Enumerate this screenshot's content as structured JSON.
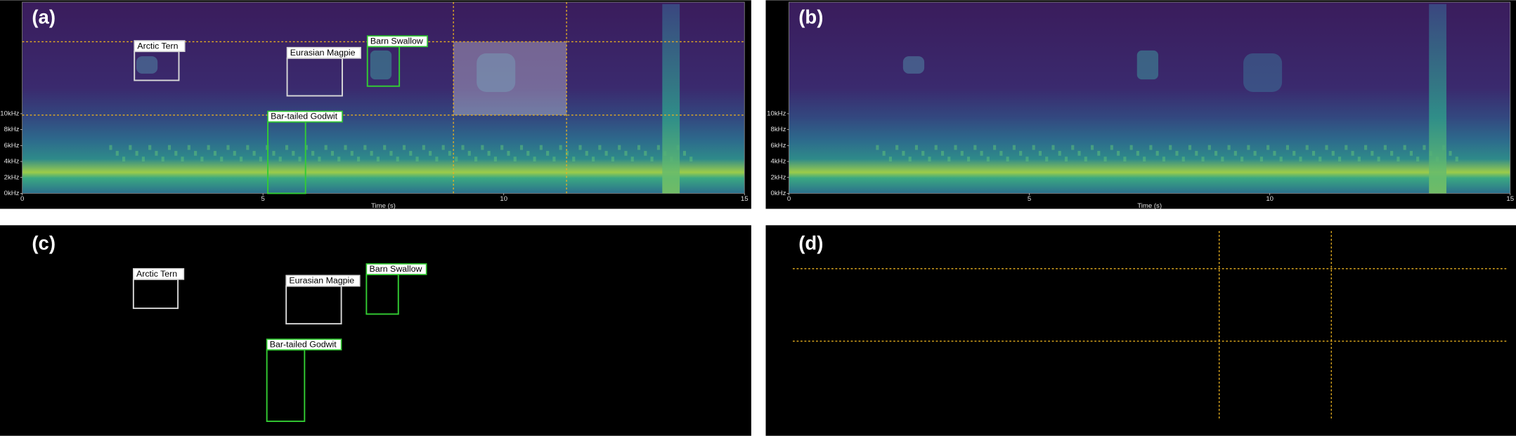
{
  "panels": [
    {
      "label": "(a)",
      "y_ticks": [
        "0kHz",
        "2kHz",
        "4kHz",
        "6kHz",
        "8kHz",
        "10kHz"
      ],
      "x_ticks": [
        "0",
        "5",
        "10",
        "15"
      ],
      "x_axis_label": "Time (s)"
    },
    {
      "label": "(b)",
      "y_ticks": [
        "0kHz",
        "2kHz",
        "4kHz",
        "6kHz",
        "8kHz",
        "10kHz"
      ],
      "x_ticks": [
        "0",
        "5",
        "10",
        "15"
      ],
      "x_axis_label": "Time (s)"
    },
    {
      "label": "(c)"
    },
    {
      "label": "(d)"
    }
  ],
  "annotations": [
    {
      "label": "Arctic Tern"
    },
    {
      "label": "Eurasian Magpie"
    },
    {
      "label": "Barn Swallow"
    },
    {
      "label": "Bar-tailed Godwit"
    }
  ]
}
